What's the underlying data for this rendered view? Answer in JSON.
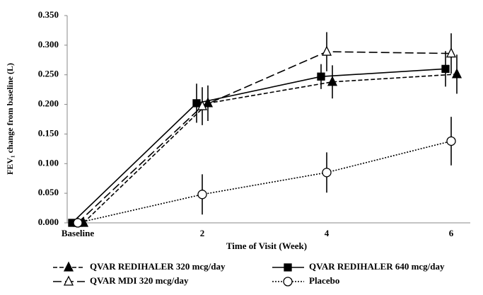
{
  "chart_data": {
    "type": "line",
    "x_label": "Time of Visit (Week)",
    "y_label": "FEV₁ change from baseline (L)",
    "categories": [
      "Baseline",
      "2",
      "4",
      "6"
    ],
    "ylim": [
      0,
      0.35
    ],
    "yticks": [
      {
        "value": 0,
        "label": "0.000"
      },
      {
        "value": 0.05,
        "label": "0.050"
      },
      {
        "value": 0.1,
        "label": "0.100"
      },
      {
        "value": 0.15,
        "label": "0.150"
      },
      {
        "value": 0.2,
        "label": "0.200"
      },
      {
        "value": 0.25,
        "label": "0.250"
      },
      {
        "value": 0.3,
        "label": "0.300"
      },
      {
        "value": 0.35,
        "label": "0.350"
      }
    ],
    "grid": false,
    "legend": "bottom",
    "series": [
      {
        "name": "QVAR REDIHALER 320 mcg/day",
        "color": "#000000",
        "marker": "triangle-filled",
        "line_style": "dashed",
        "values": [
          0,
          0.202,
          0.238,
          0.251
        ],
        "errors": [
          null,
          0.03,
          0.028,
          0.033
        ]
      },
      {
        "name": "QVAR REDIHALER 640 mcg/day",
        "color": "#000000",
        "marker": "square-filled",
        "line_style": "solid",
        "values": [
          0,
          0.202,
          0.247,
          0.26
        ],
        "errors": [
          null,
          0.033,
          0.021,
          0.03
        ]
      },
      {
        "name": "QVAR MDI 320 mcg/day",
        "color": "#000000",
        "marker": "triangle-open",
        "line_style": "long-dash",
        "values": [
          0,
          0.197,
          0.289,
          0.286
        ],
        "errors": [
          null,
          0.032,
          0.033,
          0.034
        ]
      },
      {
        "name": "Placebo",
        "color": "#000000",
        "marker": "circle-open",
        "line_style": "dotted",
        "values": [
          0,
          0.048,
          0.085,
          0.138
        ],
        "errors": [
          null,
          0.034,
          0.034,
          0.041
        ]
      }
    ]
  }
}
